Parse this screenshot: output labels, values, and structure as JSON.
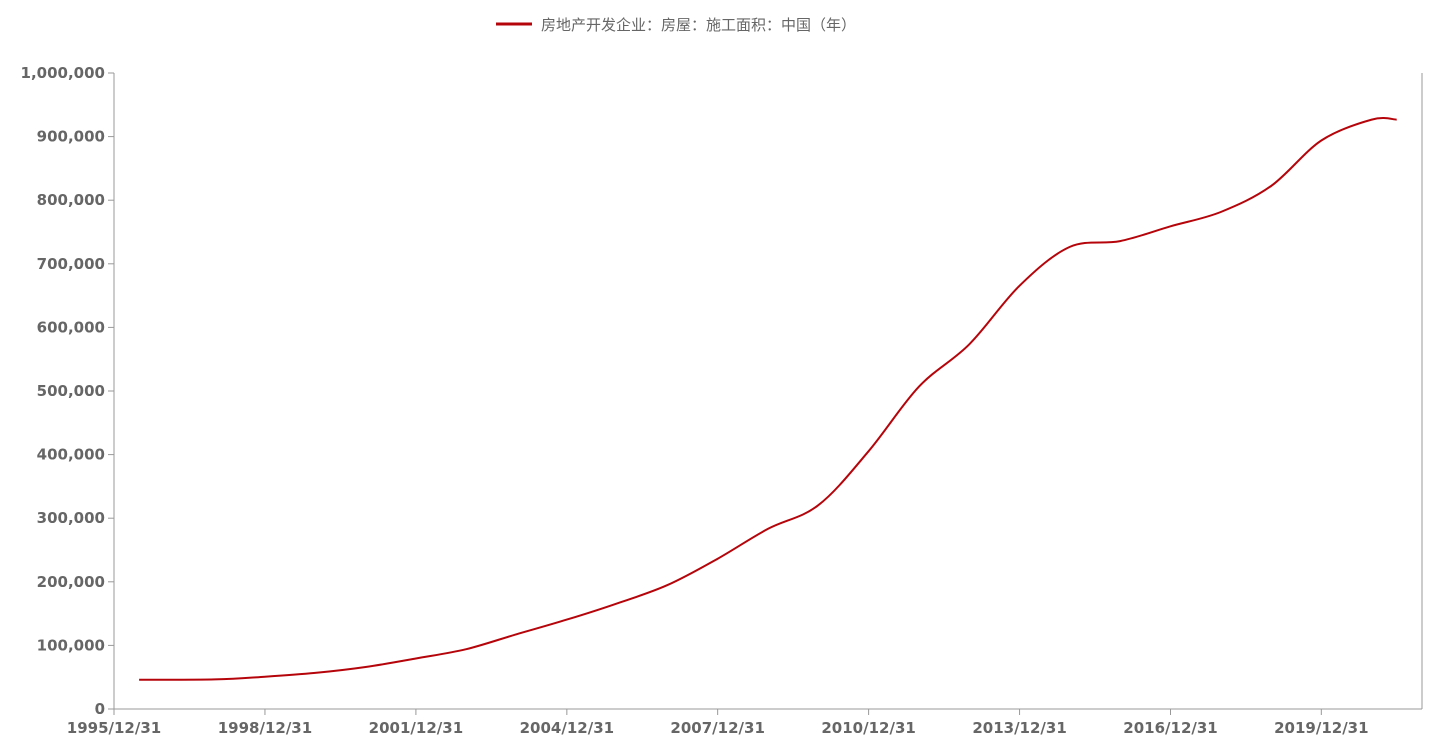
{
  "chart_data": {
    "type": "line",
    "title": "",
    "xlabel": "",
    "ylabel": "",
    "legend_position": "top-center",
    "grid": false,
    "ylim": [
      0,
      1000000
    ],
    "y_ticks": [
      "0",
      "100,000",
      "200,000",
      "300,000",
      "400,000",
      "500,000",
      "600,000",
      "700,000",
      "800,000",
      "900,000",
      "1,000,000"
    ],
    "x_ticks": [
      "1995/12/31",
      "1998/12/31",
      "2001/12/31",
      "2004/12/31",
      "2007/12/31",
      "2010/12/31",
      "2013/12/31",
      "2016/12/31",
      "2019/12/31"
    ],
    "x_range": [
      "1995/12/31",
      "2021/12/31"
    ],
    "series": [
      {
        "name": "房地产开发企业：房屋：施工面积：中国（年）",
        "color": "#b5050b",
        "x": [
          "1996/06/30",
          "1997/12/31",
          "1998/12/31",
          "1999/12/31",
          "2000/12/31",
          "2001/12/31",
          "2002/12/31",
          "2003/12/31",
          "2004/12/31",
          "2005/12/31",
          "2006/12/31",
          "2007/12/31",
          "2008/12/31",
          "2009/12/31",
          "2010/12/31",
          "2011/12/31",
          "2012/12/31",
          "2013/12/31",
          "2014/12/31",
          "2015/12/31",
          "2016/12/31",
          "2017/12/31",
          "2018/12/31",
          "2019/12/31",
          "2020/12/31",
          "2021/06/30"
        ],
        "values": [
          46000,
          46500,
          50800,
          56800,
          66000,
          79400,
          94100,
          117500,
          140500,
          166000,
          194800,
          236300,
          283300,
          320400,
          405400,
          506800,
          573400,
          665600,
          726500,
          735700,
          758900,
          781500,
          822300,
          893800,
          926800,
          926800
        ]
      }
    ]
  }
}
